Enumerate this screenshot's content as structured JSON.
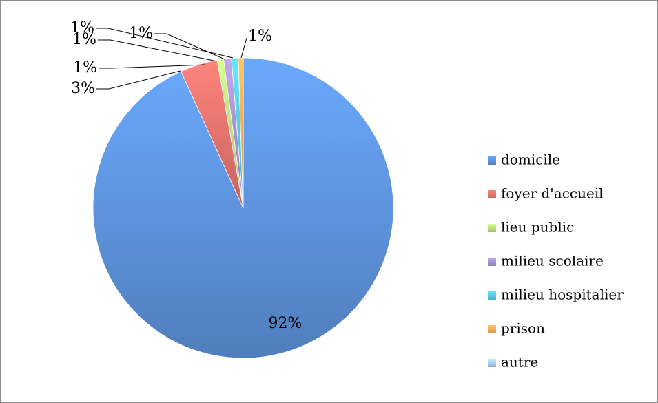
{
  "chart_data": {
    "type": "pie",
    "title": "",
    "categories": [
      "domicile",
      "foyer d'accueil",
      "lieu public",
      "milieu scolaire",
      "milieu hospitalier",
      "prison",
      "autre"
    ],
    "values": [
      92,
      3,
      1,
      1,
      1,
      1,
      1
    ],
    "percent_labels": [
      "92%",
      "3%",
      "1%",
      "1%",
      "1%",
      "1%",
      "1%"
    ],
    "colors": [
      "#5b8fd6",
      "#e2706b",
      "#b7d87a",
      "#a48fc9",
      "#58c4dc",
      "#f6a85a",
      "#aac8f2"
    ],
    "legend_position": "right"
  }
}
